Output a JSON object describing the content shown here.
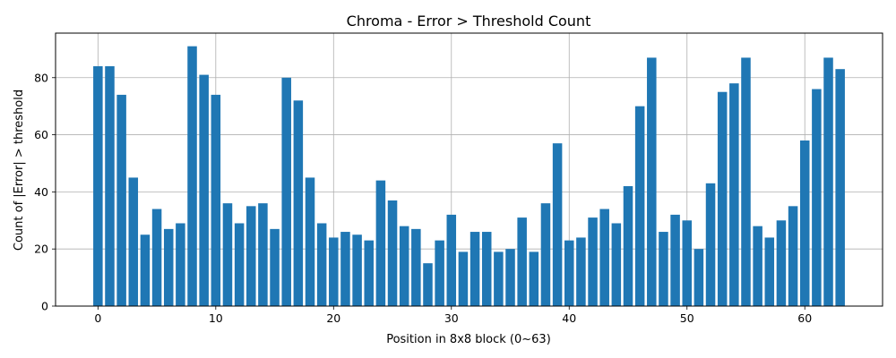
{
  "chart_data": {
    "type": "bar",
    "title": "Chroma - Error > Threshold Count",
    "xlabel": "Position in 8x8 block (0~63)",
    "ylabel": "Count of |Error| > threshold",
    "x": [
      0,
      1,
      2,
      3,
      4,
      5,
      6,
      7,
      8,
      9,
      10,
      11,
      12,
      13,
      14,
      15,
      16,
      17,
      18,
      19,
      20,
      21,
      22,
      23,
      24,
      25,
      26,
      27,
      28,
      29,
      30,
      31,
      32,
      33,
      34,
      35,
      36,
      37,
      38,
      39,
      40,
      41,
      42,
      43,
      44,
      45,
      46,
      47,
      48,
      49,
      50,
      51,
      52,
      53,
      54,
      55,
      56,
      57,
      58,
      59,
      60,
      61,
      62,
      63
    ],
    "values": [
      84,
      84,
      74,
      45,
      25,
      34,
      27,
      29,
      91,
      81,
      74,
      36,
      29,
      35,
      36,
      27,
      80,
      72,
      45,
      29,
      24,
      26,
      25,
      23,
      44,
      37,
      28,
      27,
      15,
      23,
      32,
      19,
      26,
      26,
      19,
      20,
      31,
      19,
      36,
      57,
      23,
      24,
      31,
      34,
      29,
      42,
      70,
      87,
      26,
      32,
      30,
      20,
      43,
      75,
      78,
      87,
      28,
      24,
      30,
      35,
      58,
      76,
      87,
      83
    ],
    "xlim": [
      -3.6,
      66.6
    ],
    "ylim": [
      0,
      95.6
    ],
    "xticks": [
      0,
      10,
      20,
      30,
      40,
      50,
      60
    ],
    "yticks": [
      0,
      20,
      40,
      60,
      80
    ],
    "grid": true,
    "bar_color": "#1f77b4",
    "grid_color": "#b0b0b0"
  }
}
